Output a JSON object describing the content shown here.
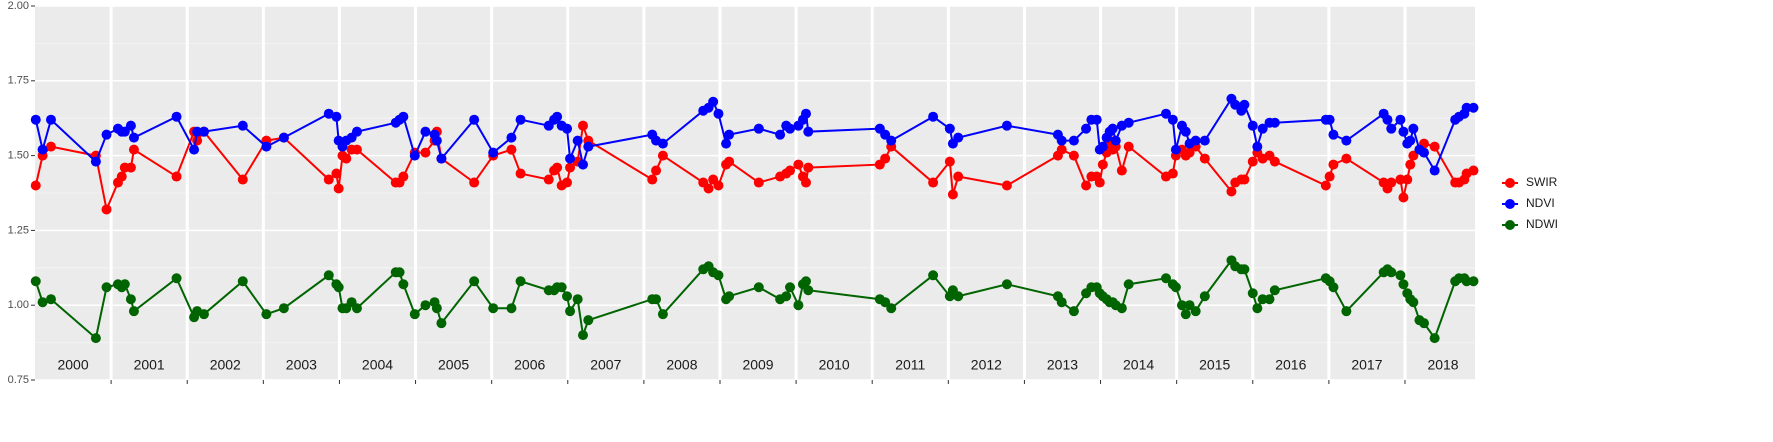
{
  "chart_data": {
    "type": "line",
    "x": [
      2000.01,
      2000.1,
      2000.21,
      2000.8,
      2000.94,
      2001.09,
      2001.14,
      2001.18,
      2001.26,
      2001.3,
      2001.86,
      2002.09,
      2002.13,
      2002.22,
      2002.73,
      2003.04,
      2003.27,
      2003.86,
      2003.96,
      2003.99,
      2004.04,
      2004.09,
      2004.16,
      2004.23,
      2004.74,
      2004.79,
      2004.84,
      2004.99,
      2005.13,
      2005.25,
      2005.28,
      2005.34,
      2005.77,
      2006.02,
      2006.26,
      2006.38,
      2006.75,
      2006.82,
      2006.86,
      2006.92,
      2006.99,
      2007.03,
      2007.13,
      2007.2,
      2007.27,
      2008.11,
      2008.16,
      2008.25,
      2008.78,
      2008.85,
      2008.91,
      2008.98,
      2009.08,
      2009.12,
      2009.51,
      2009.79,
      2009.87,
      2009.92,
      2010.03,
      2010.09,
      2010.13,
      2010.16,
      2011.1,
      2011.17,
      2011.25,
      2011.8,
      2012.02,
      2012.06,
      2012.13,
      2012.77,
      2013.44,
      2013.49,
      2013.65,
      2013.81,
      2013.88,
      2013.95,
      2013.99,
      2014.03,
      2014.08,
      2014.12,
      2014.16,
      2014.2,
      2014.28,
      2014.37,
      2014.86,
      2014.95,
      2014.99,
      2015.07,
      2015.12,
      2015.17,
      2015.25,
      2015.37,
      2015.72,
      2015.77,
      2015.85,
      2015.89,
      2016.0,
      2016.06,
      2016.13,
      2016.22,
      2016.29,
      2016.96,
      2017.01,
      2017.06,
      2017.23,
      2017.72,
      2017.77,
      2017.82,
      2017.94,
      2017.98,
      2018.03,
      2018.07,
      2018.11,
      2018.19,
      2018.25,
      2018.39,
      2018.66,
      2018.71,
      2018.78,
      2018.81,
      2018.9
    ],
    "series": [
      {
        "name": "SWIR",
        "color": "#ff0000",
        "values": [
          1.4,
          1.5,
          1.53,
          1.5,
          1.32,
          1.41,
          1.43,
          1.46,
          1.46,
          1.52,
          1.43,
          1.58,
          1.55,
          1.58,
          1.42,
          1.55,
          1.56,
          1.42,
          1.44,
          1.39,
          1.5,
          1.49,
          1.52,
          1.52,
          1.41,
          1.41,
          1.43,
          1.51,
          1.51,
          1.55,
          1.58,
          1.49,
          1.41,
          1.5,
          1.52,
          1.44,
          1.42,
          1.45,
          1.46,
          1.4,
          1.41,
          1.46,
          1.48,
          1.6,
          1.55,
          1.42,
          1.45,
          1.5,
          1.41,
          1.39,
          1.42,
          1.4,
          1.47,
          1.48,
          1.41,
          1.43,
          1.44,
          1.45,
          1.47,
          1.43,
          1.41,
          1.46,
          1.47,
          1.49,
          1.53,
          1.41,
          1.48,
          1.37,
          1.43,
          1.4,
          1.5,
          1.52,
          1.5,
          1.4,
          1.43,
          1.43,
          1.41,
          1.47,
          1.51,
          1.55,
          1.52,
          1.53,
          1.45,
          1.53,
          1.43,
          1.44,
          1.5,
          1.52,
          1.5,
          1.51,
          1.53,
          1.49,
          1.38,
          1.41,
          1.42,
          1.42,
          1.48,
          1.51,
          1.49,
          1.5,
          1.48,
          1.4,
          1.43,
          1.47,
          1.49,
          1.41,
          1.39,
          1.41,
          1.42,
          1.36,
          1.42,
          1.47,
          1.5,
          1.52,
          1.54,
          1.53,
          1.41,
          1.41,
          1.42,
          1.44,
          1.45
        ]
      },
      {
        "name": "NDVI",
        "color": "#0000ff",
        "values": [
          1.62,
          1.52,
          1.62,
          1.48,
          1.57,
          1.59,
          1.58,
          1.58,
          1.6,
          1.56,
          1.63,
          1.52,
          1.58,
          1.58,
          1.6,
          1.53,
          1.56,
          1.64,
          1.63,
          1.55,
          1.53,
          1.55,
          1.56,
          1.58,
          1.61,
          1.62,
          1.63,
          1.5,
          1.58,
          1.57,
          1.55,
          1.49,
          1.62,
          1.51,
          1.56,
          1.62,
          1.6,
          1.62,
          1.63,
          1.6,
          1.59,
          1.49,
          1.55,
          1.47,
          1.53,
          1.57,
          1.55,
          1.54,
          1.65,
          1.66,
          1.68,
          1.64,
          1.54,
          1.57,
          1.59,
          1.57,
          1.6,
          1.59,
          1.6,
          1.62,
          1.64,
          1.58,
          1.59,
          1.57,
          1.55,
          1.63,
          1.59,
          1.54,
          1.56,
          1.6,
          1.57,
          1.55,
          1.55,
          1.59,
          1.62,
          1.62,
          1.52,
          1.53,
          1.56,
          1.58,
          1.59,
          1.55,
          1.6,
          1.61,
          1.64,
          1.62,
          1.52,
          1.6,
          1.58,
          1.54,
          1.55,
          1.55,
          1.69,
          1.67,
          1.65,
          1.67,
          1.6,
          1.53,
          1.59,
          1.61,
          1.61,
          1.62,
          1.62,
          1.57,
          1.55,
          1.64,
          1.62,
          1.59,
          1.62,
          1.58,
          1.54,
          1.55,
          1.59,
          1.52,
          1.51,
          1.45,
          1.62,
          1.63,
          1.64,
          1.66,
          1.66
        ]
      },
      {
        "name": "NDWI",
        "color": "#006400",
        "values": [
          1.08,
          1.01,
          1.02,
          0.89,
          1.06,
          1.07,
          1.06,
          1.07,
          1.02,
          0.98,
          1.09,
          0.96,
          0.98,
          0.97,
          1.08,
          0.97,
          0.99,
          1.1,
          1.07,
          1.06,
          0.99,
          0.99,
          1.01,
          0.99,
          1.11,
          1.11,
          1.07,
          0.97,
          1.0,
          1.01,
          0.99,
          0.94,
          1.08,
          0.99,
          0.99,
          1.08,
          1.05,
          1.05,
          1.06,
          1.06,
          1.03,
          0.98,
          1.02,
          0.9,
          0.95,
          1.02,
          1.02,
          0.97,
          1.12,
          1.13,
          1.11,
          1.1,
          1.02,
          1.03,
          1.06,
          1.02,
          1.03,
          1.06,
          1.0,
          1.07,
          1.08,
          1.05,
          1.02,
          1.01,
          0.99,
          1.1,
          1.03,
          1.05,
          1.03,
          1.07,
          1.03,
          1.01,
          0.98,
          1.04,
          1.06,
          1.06,
          1.04,
          1.03,
          1.02,
          1.01,
          1.01,
          1.0,
          0.99,
          1.07,
          1.09,
          1.07,
          1.06,
          1.0,
          0.97,
          1.0,
          0.98,
          1.03,
          1.15,
          1.13,
          1.12,
          1.12,
          1.04,
          0.99,
          1.02,
          1.02,
          1.05,
          1.09,
          1.08,
          1.06,
          0.98,
          1.11,
          1.12,
          1.11,
          1.1,
          1.07,
          1.04,
          1.02,
          1.01,
          0.95,
          0.94,
          0.89,
          1.08,
          1.09,
          1.09,
          1.08,
          1.08
        ]
      }
    ],
    "xlim": [
      2000,
      2018.92
    ],
    "xticks": [
      2001,
      2002,
      2003,
      2004,
      2005,
      2006,
      2007,
      2008,
      2009,
      2010,
      2011,
      2012,
      2013,
      2014,
      2015,
      2016,
      2017,
      2018
    ],
    "year_labels": [
      2000,
      2001,
      2002,
      2003,
      2004,
      2005,
      2006,
      2007,
      2008,
      2009,
      2010,
      2011,
      2012,
      2013,
      2014,
      2015,
      2016,
      2017,
      2018
    ],
    "ylim": [
      0.75,
      2.0
    ],
    "yticks": [
      0.75,
      {
        "value": 1,
        "label": "1.00"
      },
      1.25,
      {
        "value": 1.5,
        "label": "1.50"
      },
      1.75,
      {
        "value": 2,
        "label": "2.00"
      }
    ],
    "grid": true,
    "legend": "right"
  }
}
